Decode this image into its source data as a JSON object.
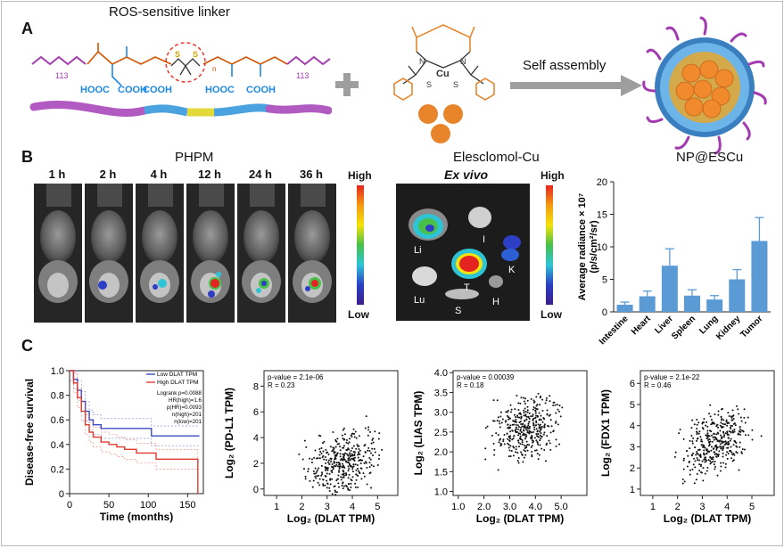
{
  "panel_a": {
    "letter": "A",
    "linker_title": "ROS-sensitive linker",
    "peg_left": "113",
    "peg_right": "113",
    "n_sub": "n",
    "groups": [
      "HOOC",
      "COOH",
      "COOH",
      "HOOC",
      "COOH"
    ],
    "self_assembly": "Self assembly",
    "escu_atoms": {
      "cu": "Cu",
      "s1": "S",
      "s2": "S",
      "n1": "N",
      "n2": "N"
    }
  },
  "panel_b": {
    "letter": "B",
    "phpm_label": "PHPM",
    "escu_label": "Elesclomol-Cu",
    "np_label": "NP@ESCu",
    "timepoints": [
      "1 h",
      "2 h",
      "4 h",
      "12 h",
      "24 h",
      "36 h"
    ],
    "scale_high": "High",
    "scale_low": "Low",
    "exvivo_title": "Ex vivo",
    "organ_labels": [
      "Li",
      "I",
      "K",
      "T",
      "H",
      "Lu",
      "S"
    ]
  },
  "panel_c": {
    "letter": "C",
    "km": {
      "ylabel": "Disease-free survival",
      "xlabel": "Time (months)",
      "legend": [
        "Low DLAT TPM",
        "High DLAT TPM"
      ],
      "stats": [
        "Logrank p=0.0088",
        "HR(high)=1.6",
        "p(HR)=0.0093",
        "n(high)=201",
        "n(low)=201"
      ],
      "yticks": [
        "0",
        "0.2",
        "0.4",
        "0.6",
        "0.8",
        "1.0"
      ],
      "xticks": [
        "0",
        "50",
        "100",
        "150"
      ]
    },
    "scatters": [
      {
        "ylabel": "Log₂ (PD-L1 TPM)",
        "xlabel": "Log₂ (DLAT TPM)",
        "pvalue": "p-value = 2.1e-06",
        "r": "R = 0.23",
        "yticks": [
          "0",
          "2",
          "4",
          "6",
          "8"
        ],
        "xticks": [
          "1",
          "2",
          "3",
          "4",
          "5"
        ]
      },
      {
        "ylabel": "Log₂ (LIAS TPM)",
        "xlabel": "Log₂ (DLAT TPM)",
        "pvalue": "p-value = 0.00039",
        "r": "R = 0.18",
        "yticks": [
          "1.0",
          "1.5",
          "2.0",
          "2.5",
          "3.0",
          "3.5",
          "4.0"
        ],
        "xticks": [
          "1.0",
          "2.0",
          "3.0",
          "4.0",
          "5.0"
        ]
      },
      {
        "ylabel": "Log₂ (FDX1 TPM)",
        "xlabel": "Log₂ (DLAT TPM)",
        "pvalue": "p-value = 2.1e-22",
        "r": "R = 0.46",
        "yticks": [
          "1",
          "2",
          "3",
          "4",
          "5",
          "6"
        ],
        "xticks": [
          "1",
          "2",
          "3",
          "4",
          "5"
        ]
      }
    ]
  },
  "chart_data": [
    {
      "type": "bar",
      "ylabel": "Average radiance × 10⁷ (p/s/cm²/sr)",
      "categories": [
        "Intestine",
        "Heart",
        "Liver",
        "Spleen",
        "Lung",
        "Kidney",
        "Tumor"
      ],
      "values": [
        1.1,
        2.4,
        7.1,
        2.5,
        1.9,
        5.0,
        10.9
      ],
      "errors": [
        0.4,
        0.8,
        2.6,
        0.9,
        0.6,
        1.5,
        3.6
      ],
      "yticks": [
        "0",
        "5",
        "10",
        "15",
        "20"
      ],
      "ylim": [
        0,
        20
      ],
      "color": "#5b9bd5"
    },
    {
      "type": "line",
      "xlabel": "Time (months)",
      "ylabel": "Disease-free survival",
      "xlim": [
        0,
        170
      ],
      "ylim": [
        0,
        1.0
      ],
      "series": [
        {
          "name": "Low DLAT TPM",
          "color": "#3b4dc4",
          "x": [
            0,
            5,
            10,
            15,
            20,
            25,
            30,
            40,
            50,
            60,
            80,
            100,
            104,
            120,
            140,
            165
          ],
          "y": [
            1.0,
            0.93,
            0.84,
            0.75,
            0.67,
            0.6,
            0.56,
            0.53,
            0.53,
            0.53,
            0.53,
            0.53,
            0.47,
            0.47,
            0.47,
            0.47
          ]
        },
        {
          "name": "High DLAT TPM",
          "color": "#e23a2e",
          "x": [
            0,
            5,
            10,
            15,
            20,
            25,
            30,
            40,
            50,
            60,
            70,
            85,
            100,
            110,
            130,
            150,
            160,
            163
          ],
          "y": [
            1.0,
            0.9,
            0.78,
            0.67,
            0.56,
            0.5,
            0.46,
            0.42,
            0.4,
            0.38,
            0.36,
            0.33,
            0.33,
            0.28,
            0.28,
            0.28,
            0.28,
            0.0
          ]
        }
      ]
    },
    {
      "type": "scatter",
      "xlabel": "Log₂ (DLAT TPM)",
      "ylabel": "Log₂ (PD-L1 TPM)",
      "xlim": [
        0.5,
        5.8
      ],
      "ylim": [
        -0.5,
        9.2
      ],
      "slope": 0.55,
      "intercept": 0.1,
      "r": 0.23
    },
    {
      "type": "scatter",
      "xlabel": "Log₂ (DLAT TPM)",
      "ylabel": "Log₂ (LIAS TPM)",
      "xlim": [
        0.8,
        6.0
      ],
      "ylim": [
        0.9,
        4.05
      ],
      "slope": 0.12,
      "intercept": 2.2,
      "r": 0.18
    },
    {
      "type": "scatter",
      "xlabel": "Log₂ (DLAT TPM)",
      "ylabel": "Log₂ (FDX1 TPM)",
      "xlim": [
        0.5,
        5.9
      ],
      "ylim": [
        0.7,
        6.6
      ],
      "slope": 0.45,
      "intercept": 1.6,
      "r": 0.46
    }
  ]
}
